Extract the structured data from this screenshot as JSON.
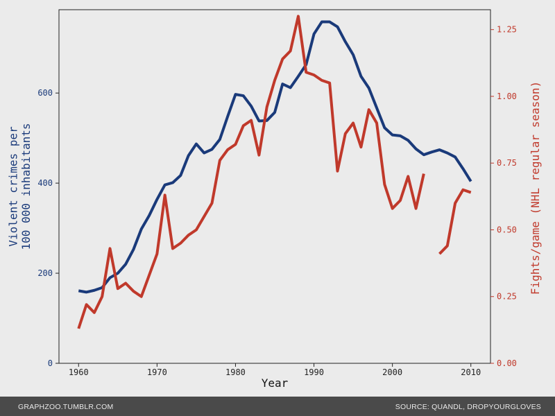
{
  "chart_data": {
    "type": "line",
    "title": "",
    "xlabel": "Year",
    "ylabel_left": "Violent crimes per\n100 000 inhabitants",
    "ylabel_right": "Fights/game (NHL regular season)",
    "xlim": [
      1957.5,
      2012.5
    ],
    "ylim_left": [
      0,
      785
    ],
    "ylim_right": [
      0,
      1.3245
    ],
    "x_ticks": [
      1960,
      1970,
      1980,
      1990,
      2000,
      2010
    ],
    "y_left_ticks": [
      0,
      200,
      400,
      600
    ],
    "y_right_ticks": [
      "0.00",
      "0.25",
      "0.50",
      "0.75",
      "1.00",
      "1.25"
    ],
    "grid": false,
    "series": [
      {
        "axis": "left",
        "color": "#1a3a7a",
        "x": [
          1960,
          1961,
          1962,
          1963,
          1964,
          1965,
          1966,
          1967,
          1968,
          1969,
          1970,
          1971,
          1972,
          1973,
          1974,
          1975,
          1976,
          1977,
          1978,
          1979,
          1980,
          1981,
          1982,
          1983,
          1984,
          1985,
          1986,
          1987,
          1988,
          1989,
          1990,
          1991,
          1992,
          1993,
          1994,
          1995,
          1996,
          1997,
          1998,
          1999,
          2000,
          2001,
          2002,
          2003,
          2004,
          2005,
          2006,
          2007,
          2008,
          2009,
          2010
        ],
        "values": [
          161,
          158,
          162,
          168,
          190,
          200,
          220,
          253,
          298,
          328,
          364,
          396,
          401,
          417,
          461,
          487,
          467,
          475,
          497,
          548,
          597,
          594,
          571,
          538,
          539,
          557,
          620,
          612,
          637,
          663,
          731,
          758,
          758,
          747,
          714,
          685,
          637,
          611,
          567,
          523,
          507,
          505,
          495,
          476,
          463,
          469,
          474,
          467,
          458,
          432,
          404
        ]
      },
      {
        "axis": "right",
        "color": "#c0392b",
        "x": [
          1960,
          1961,
          1962,
          1963,
          1964,
          1965,
          1966,
          1967,
          1968,
          1969,
          1970,
          1971,
          1972,
          1973,
          1974,
          1975,
          1976,
          1977,
          1978,
          1979,
          1980,
          1981,
          1982,
          1983,
          1984,
          1985,
          1986,
          1987,
          1988,
          1989,
          1990,
          1991,
          1992,
          1993,
          1994,
          1995,
          1996,
          1997,
          1998,
          1999,
          2000,
          2001,
          2002,
          2003,
          2004,
          2005,
          2006,
          2007,
          2008,
          2009,
          2010
        ],
        "values": [
          0.13,
          0.22,
          0.19,
          0.25,
          0.43,
          0.28,
          0.3,
          0.27,
          0.25,
          0.33,
          0.41,
          0.63,
          0.43,
          0.45,
          0.48,
          0.5,
          0.55,
          0.6,
          0.76,
          0.8,
          0.82,
          0.89,
          0.91,
          0.78,
          0.96,
          1.06,
          1.14,
          1.17,
          1.3,
          1.09,
          1.08,
          1.06,
          1.05,
          0.72,
          0.86,
          0.9,
          0.81,
          0.95,
          0.9,
          0.67,
          0.58,
          0.61,
          0.7,
          0.58,
          0.71,
          null,
          0.41,
          0.44,
          0.6,
          0.65,
          0.64
        ]
      }
    ]
  },
  "footer": {
    "left": "GRAPHZOO.TUMBLR.COM",
    "right": "SOURCE: QUANDL, DROPYOURGLOVES"
  }
}
